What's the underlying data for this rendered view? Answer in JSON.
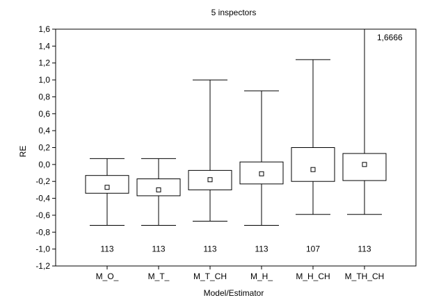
{
  "chart_data": {
    "type": "box",
    "title": "5 inspectors",
    "xlabel": "Model/Estimator",
    "ylabel": "RE",
    "ylim": [
      -1.2,
      1.6
    ],
    "yticks": [
      "1,6",
      "1,4",
      "1,2",
      "1,0",
      "0,8",
      "0,6",
      "0,4",
      "0,2",
      "0,0",
      "-0,2",
      "-0,4",
      "-0,6",
      "-0,8",
      "-1,0",
      "-1,2"
    ],
    "ytick_values": [
      1.6,
      1.4,
      1.2,
      1.0,
      0.8,
      0.6,
      0.4,
      0.2,
      0.0,
      -0.2,
      -0.4,
      -0.6,
      -0.8,
      -1.0,
      -1.2
    ],
    "categories": [
      "M_O_",
      "M_T_",
      "M_T_CH",
      "M_H_",
      "M_H_CH",
      "M_TH_CH"
    ],
    "boxes": [
      {
        "category": "M_O_",
        "whisker_low": -0.72,
        "q1": -0.34,
        "median": -0.27,
        "q3": -0.13,
        "whisker_high": 0.07,
        "n": "113"
      },
      {
        "category": "M_T_",
        "whisker_low": -0.72,
        "q1": -0.37,
        "median": -0.3,
        "q3": -0.17,
        "whisker_high": 0.07,
        "n": "113"
      },
      {
        "category": "M_T_CH",
        "whisker_low": -0.67,
        "q1": -0.3,
        "median": -0.18,
        "q3": -0.07,
        "whisker_high": 1.0,
        "n": "113"
      },
      {
        "category": "M_H_",
        "whisker_low": -0.72,
        "q1": -0.23,
        "median": -0.11,
        "q3": 0.03,
        "whisker_high": 0.87,
        "n": "113"
      },
      {
        "category": "M_H_CH",
        "whisker_low": -0.59,
        "q1": -0.2,
        "median": -0.06,
        "q3": 0.2,
        "whisker_high": 1.24,
        "n": "107"
      },
      {
        "category": "M_TH_CH",
        "whisker_low": -0.59,
        "q1": -0.19,
        "median": 0.0,
        "q3": 0.13,
        "whisker_high": 1.6666,
        "n": "113"
      }
    ],
    "annotations": [
      {
        "text": "1,6666",
        "category": "M_TH_CH",
        "value": 1.6
      }
    ],
    "grid": false,
    "legend": "none"
  }
}
